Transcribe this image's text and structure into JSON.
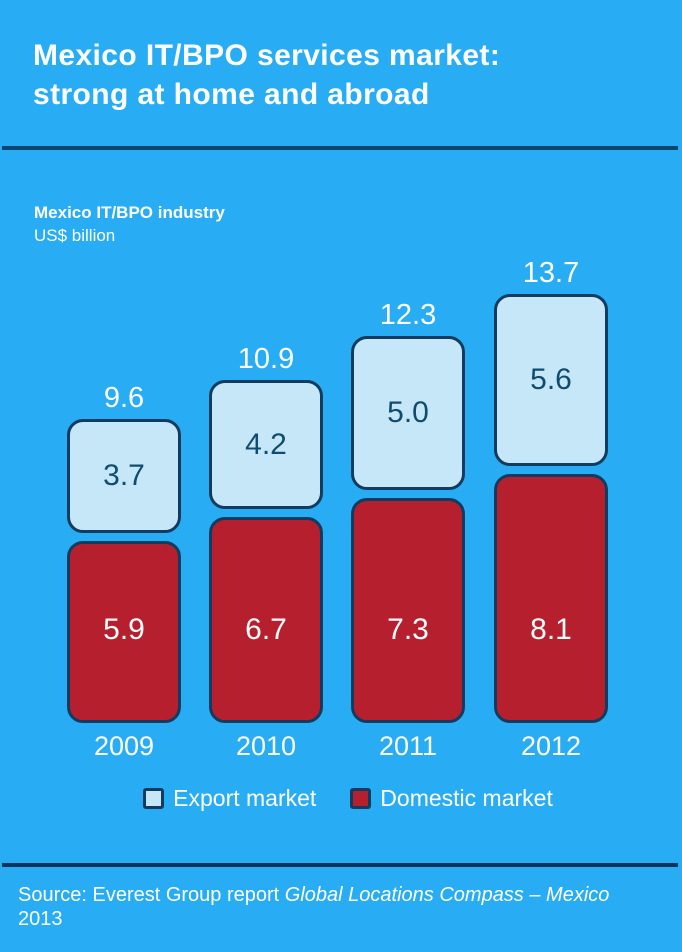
{
  "page": {
    "title_line1": "Mexico IT/BPO services market:",
    "title_line2": "strong at home and abroad",
    "chart_title": "Mexico IT/BPO industry",
    "chart_unit": "US$ billion",
    "source_prefix": "Source: Everest Group report ",
    "source_italic": "Global Locations Compass – Mexico",
    "source_suffix": " 2013"
  },
  "colors": {
    "background": "#28ACF4",
    "export_fill": "#C6E7F8",
    "domestic_fill": "#B6202E",
    "border_navy": "#123C5F",
    "export_value_text": "#0F4C70",
    "divider_top": "#0B4572",
    "divider_bottom": "#0A3458",
    "text_white": "#FFFFFF"
  },
  "legend": {
    "items": [
      {
        "label": "Export market",
        "swatch": "export"
      },
      {
        "label": "Domestic market",
        "swatch": "domestic"
      }
    ]
  },
  "chart_data": {
    "type": "bar",
    "stacked": true,
    "title": "Mexico IT/BPO industry",
    "ylabel": "US$ billion",
    "categories": [
      "2009",
      "2010",
      "2011",
      "2012"
    ],
    "series": [
      {
        "name": "Export market",
        "values": [
          3.7,
          4.2,
          5.0,
          5.6
        ]
      },
      {
        "name": "Domestic market",
        "values": [
          5.9,
          6.7,
          7.3,
          8.1
        ]
      }
    ],
    "totals": [
      9.6,
      10.9,
      12.3,
      13.7
    ],
    "legend_position": "bottom",
    "grid": false,
    "value_labels_shown": true
  }
}
